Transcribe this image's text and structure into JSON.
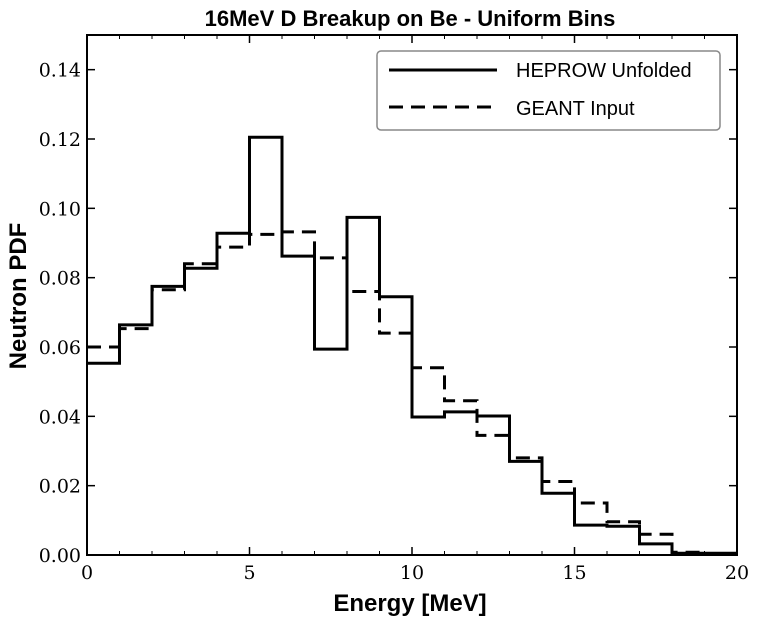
{
  "chart_data": {
    "type": "step-histogram",
    "title": "16MeV D Breakup on Be - Uniform Bins",
    "xlabel": "Energy [MeV]",
    "ylabel": "Neutron PDF",
    "xlim": [
      0,
      20
    ],
    "ylim": [
      0,
      0.15
    ],
    "x_ticks": [
      0,
      5,
      10,
      15,
      20
    ],
    "x_tick_labels": [
      "0",
      "5",
      "10",
      "15",
      "20"
    ],
    "y_ticks": [
      0,
      0.02,
      0.04,
      0.06,
      0.08,
      0.1,
      0.12,
      0.14
    ],
    "y_tick_labels": [
      "0.00",
      "0.02",
      "0.04",
      "0.06",
      "0.08",
      "0.10",
      "0.12",
      "0.14"
    ],
    "bin_edges": [
      0,
      1,
      2,
      3,
      4,
      5,
      6,
      7,
      8,
      9,
      10,
      11,
      12,
      13,
      14,
      15,
      16,
      17,
      18,
      19,
      20
    ],
    "series": [
      {
        "name": "HEPROW Unfolded",
        "style": "solid",
        "color": "#000000",
        "values": [
          0.0553,
          0.0664,
          0.0775,
          0.0827,
          0.0928,
          0.1205,
          0.0862,
          0.0594,
          0.0974,
          0.0745,
          0.0398,
          0.0413,
          0.0401,
          0.027,
          0.0178,
          0.0086,
          0.0083,
          0.0032,
          0.0005,
          0.0005
        ]
      },
      {
        "name": "GEANT Input",
        "style": "dashed",
        "color": "#000000",
        "values": [
          0.06,
          0.0653,
          0.0765,
          0.084,
          0.0888,
          0.0925,
          0.0932,
          0.0857,
          0.076,
          0.064,
          0.054,
          0.0445,
          0.0345,
          0.028,
          0.0212,
          0.015,
          0.0096,
          0.006,
          0.0008,
          0.0004
        ]
      }
    ],
    "legend_position": "top-right",
    "grid": false
  }
}
